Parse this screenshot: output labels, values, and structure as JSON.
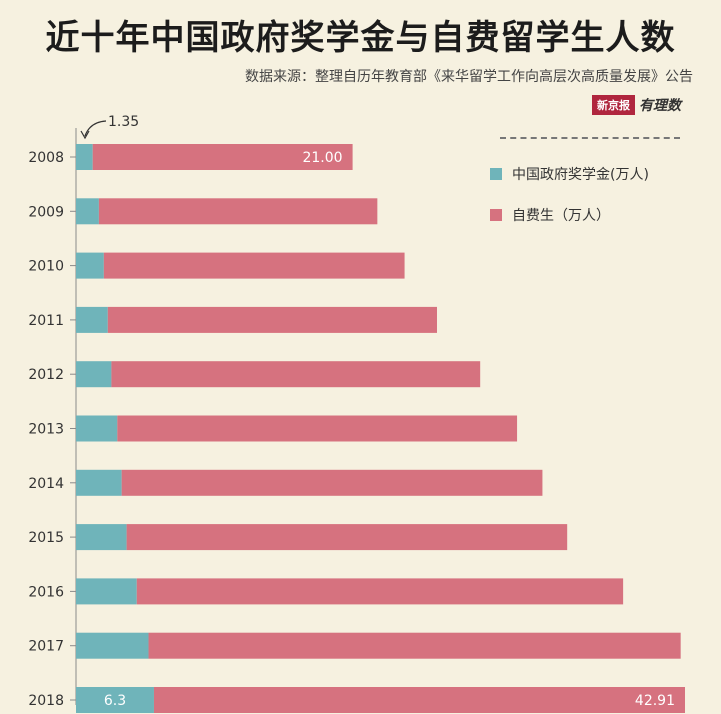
{
  "title": "近十年中国政府奖学金与自费留学生人数",
  "source": "数据来源：整理自历年教育部《来华留学工作向高层次高质量发展》公告",
  "logo": {
    "box": "新京报",
    "text": "有理数"
  },
  "colors": {
    "background": "#f6f1e0",
    "scholarship": "#6fb4ba",
    "self_funded": "#d6727f",
    "axis": "#8a8a8a"
  },
  "chart_data": {
    "type": "bar",
    "orientation": "horizontal",
    "stacked": true,
    "title": "近十年中国政府奖学金与自费留学生人数",
    "categories": [
      "2008",
      "2009",
      "2010",
      "2011",
      "2012",
      "2013",
      "2014",
      "2015",
      "2016",
      "2017",
      "2018"
    ],
    "series": [
      {
        "name": "中国政府奖学金(万人)",
        "color": "#6fb4ba",
        "values": [
          1.35,
          1.85,
          2.25,
          2.57,
          2.86,
          3.34,
          3.69,
          4.09,
          4.91,
          5.86,
          6.3
        ]
      },
      {
        "name": "自费生（万人）",
        "color": "#d6727f",
        "values": [
          21.0,
          22.5,
          24.3,
          26.6,
          29.8,
          32.3,
          34.0,
          35.6,
          39.3,
          43.0,
          42.91
        ]
      }
    ],
    "data_labels": [
      {
        "category": "2008",
        "series": "中国政府奖学金(万人)",
        "text": "1.35"
      },
      {
        "category": "2008",
        "series": "自费生（万人）",
        "text": "21.00"
      },
      {
        "category": "2018",
        "series": "中国政府奖学金(万人)",
        "text": "6.3"
      },
      {
        "category": "2018",
        "series": "自费生（万人）",
        "text": "42.91"
      }
    ],
    "xlim": [
      0,
      49.21
    ],
    "grid": false,
    "legend": "top-right"
  }
}
